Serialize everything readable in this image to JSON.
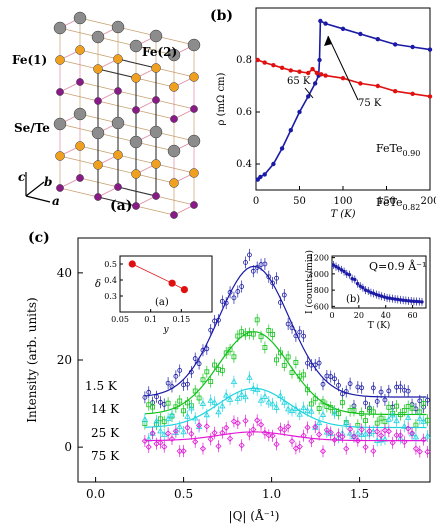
{
  "colors": {
    "blue": "#1a1aa6",
    "red": "#e01010",
    "green": "#12c21a",
    "cyan": "#1fd4e0",
    "magenta": "#e21ad6",
    "gray_atom": "#8c8c8c",
    "orange_atom": "#f0a020",
    "purple_atom": "#8a1a8a",
    "bond_tan": "#c8a070",
    "bond_pink": "#e08aa0"
  },
  "panel_a": {
    "label": "(a)",
    "atom_labels": [
      "Fe(2)",
      "Fe(1)",
      "Se/Te"
    ],
    "axes": [
      "c",
      "b",
      "a"
    ]
  },
  "panel_b": {
    "label": "(b)",
    "annotations": [
      "65 K",
      "75 K"
    ],
    "series_labels": [
      {
        "base": "FeTe",
        "sub": "0.90"
      },
      {
        "base": "FeTe",
        "sub": "0.82"
      }
    ]
  },
  "panel_c": {
    "label": "(c)",
    "temp_labels": [
      "1.5 K",
      "14 K",
      "25 K",
      "75 K"
    ],
    "inset_a_label": "(a)",
    "inset_b_label": "(b)",
    "inset_b_note": "Q=0.9 Å⁻¹"
  },
  "chart_data": [
    {
      "type": "line",
      "panel": "b",
      "title": "",
      "xlabel": "T (K)",
      "ylabel": "ρ (mΩ cm)",
      "xlim": [
        0,
        200
      ],
      "ylim": [
        0.3,
        1.0
      ],
      "xticks": [
        0,
        50,
        100,
        150,
        200
      ],
      "yticks": [
        0.4,
        0.6,
        0.8
      ],
      "series": [
        {
          "name": "FeTe0.90",
          "color": "blue",
          "x": [
            2,
            5,
            10,
            20,
            30,
            40,
            50,
            60,
            68,
            72,
            73,
            74,
            80,
            100,
            120,
            140,
            160,
            180,
            200
          ],
          "y": [
            0.34,
            0.35,
            0.36,
            0.4,
            0.46,
            0.53,
            0.6,
            0.66,
            0.71,
            0.74,
            0.8,
            0.95,
            0.94,
            0.92,
            0.9,
            0.88,
            0.86,
            0.85,
            0.84
          ]
        },
        {
          "name": "FeTe0.82",
          "color": "red",
          "x": [
            2,
            10,
            20,
            30,
            40,
            50,
            60,
            65,
            70,
            75,
            80,
            100,
            120,
            140,
            160,
            180,
            200
          ],
          "y": [
            0.8,
            0.79,
            0.78,
            0.77,
            0.76,
            0.755,
            0.75,
            0.765,
            0.75,
            0.745,
            0.74,
            0.73,
            0.71,
            0.7,
            0.68,
            0.67,
            0.66
          ]
        }
      ]
    },
    {
      "type": "scatter",
      "panel": "c",
      "title": "",
      "xlabel": "|Q| (Å⁻¹)",
      "ylabel": "Intensity (arb. units)",
      "xlim": [
        -0.1,
        1.9
      ],
      "ylim": [
        -8,
        48
      ],
      "xticks": [
        0.0,
        0.5,
        1.0,
        1.5
      ],
      "yticks": [
        0,
        20,
        40
      ],
      "series": [
        {
          "name": "1.5 K",
          "color": "blue",
          "baseline": 11.5,
          "amplitude": 30,
          "center": 0.9,
          "width": 0.2
        },
        {
          "name": "14 K",
          "color": "green",
          "baseline": 7.5,
          "amplitude": 19,
          "center": 0.9,
          "width": 0.2
        },
        {
          "name": "25 K",
          "color": "cyan",
          "baseline": 4.5,
          "amplitude": 9,
          "center": 0.9,
          "width": 0.2
        },
        {
          "name": "75 K",
          "color": "magenta",
          "baseline": 1.5,
          "amplitude": 2,
          "center": 0.9,
          "width": 0.2
        }
      ]
    },
    {
      "type": "line",
      "panel": "c-inset-a",
      "title": "",
      "xlabel": "y",
      "ylabel": "δ",
      "xlim": [
        0.05,
        0.2
      ],
      "ylim": [
        0.2,
        0.55
      ],
      "xticks": [
        0.05,
        0.1,
        0.15
      ],
      "yticks": [
        0.3,
        0.4,
        0.5
      ],
      "x": [
        0.07,
        0.135,
        0.155
      ],
      "y": [
        0.5,
        0.38,
        0.34
      ]
    },
    {
      "type": "scatter",
      "panel": "c-inset-b",
      "title": "",
      "xlabel": "T (K)",
      "ylabel": "I (counts/min)",
      "xlim": [
        0,
        70
      ],
      "ylim": [
        580,
        1220
      ],
      "xticks": [
        0,
        20,
        40,
        60
      ],
      "yticks": [
        600,
        800,
        1000,
        1200
      ],
      "x": [
        1,
        3,
        5,
        7,
        9,
        11,
        13,
        15,
        17,
        19,
        21,
        23,
        25,
        27,
        29,
        31,
        33,
        35,
        37,
        39,
        41,
        43,
        45,
        47,
        49,
        51,
        53,
        55,
        57,
        59,
        61,
        63,
        65,
        67
      ],
      "y": [
        1110,
        1090,
        1070,
        1050,
        1030,
        1000,
        990,
        940,
        930,
        880,
        850,
        830,
        800,
        790,
        770,
        760,
        745,
        735,
        725,
        715,
        705,
        700,
        695,
        690,
        685,
        680,
        676,
        672,
        668,
        665,
        662,
        660,
        658,
        655
      ]
    }
  ]
}
